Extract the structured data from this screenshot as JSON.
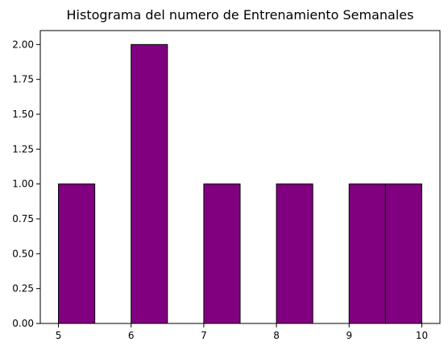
{
  "chart_data": {
    "type": "bar",
    "title": "Histograma del numero de Entrenamiento Semanales",
    "xlabel": "",
    "ylabel": "",
    "bins": [
      {
        "start": 5.0,
        "end": 5.5,
        "count": 1
      },
      {
        "start": 5.5,
        "end": 6.0,
        "count": 0
      },
      {
        "start": 6.0,
        "end": 6.5,
        "count": 2
      },
      {
        "start": 6.5,
        "end": 7.0,
        "count": 0
      },
      {
        "start": 7.0,
        "end": 7.5,
        "count": 1
      },
      {
        "start": 7.5,
        "end": 8.0,
        "count": 0
      },
      {
        "start": 8.0,
        "end": 8.5,
        "count": 1
      },
      {
        "start": 8.5,
        "end": 9.0,
        "count": 0
      },
      {
        "start": 9.0,
        "end": 9.5,
        "count": 1
      },
      {
        "start": 9.5,
        "end": 10.0,
        "count": 1
      }
    ],
    "xlim": [
      4.75,
      10.25
    ],
    "ylim": [
      0,
      2.1
    ],
    "xticks": [
      5,
      6,
      7,
      8,
      9,
      10
    ],
    "xtick_labels": [
      "5",
      "6",
      "7",
      "8",
      "9",
      "10"
    ],
    "yticks": [
      0,
      0.25,
      0.5,
      0.75,
      1.0,
      1.25,
      1.5,
      1.75,
      2.0
    ],
    "ytick_labels": [
      "0.00",
      "0.25",
      "0.50",
      "0.75",
      "1.00",
      "1.25",
      "1.50",
      "1.75",
      "2.00"
    ],
    "bar_color": "#800080",
    "edge_color": "#000000",
    "grid": false,
    "legend": "none"
  }
}
